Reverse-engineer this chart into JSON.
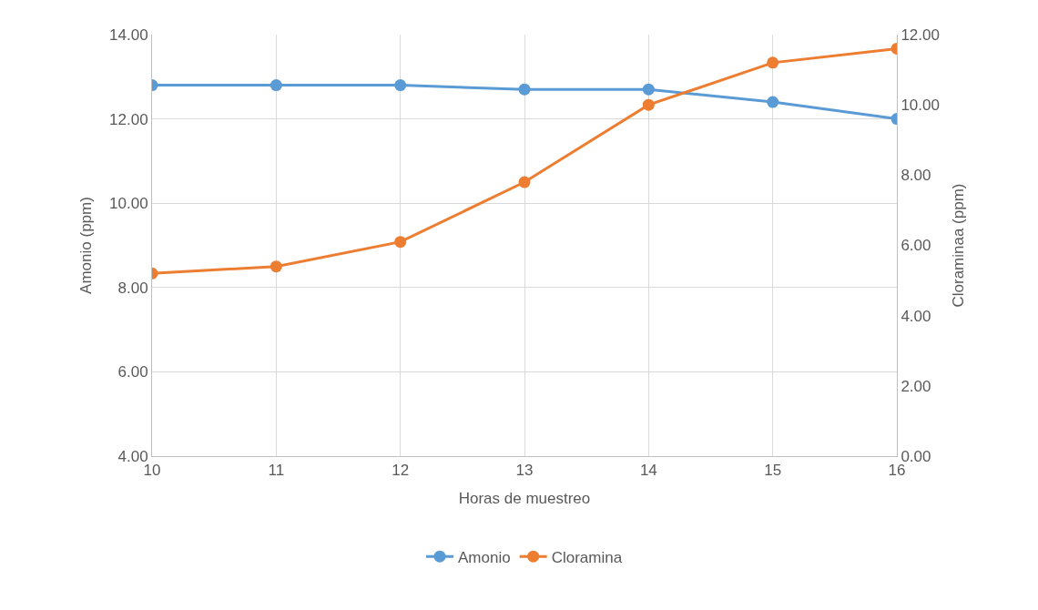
{
  "chart_data": {
    "type": "line",
    "xlabel": "Horas de muestreo",
    "ylabel": "Amonio (ppm)",
    "y2label": "Cloraminaa (ppm)",
    "x": [
      10,
      11,
      12,
      13,
      14,
      15,
      16
    ],
    "series": [
      {
        "name": "Amonio",
        "color": "#5b9bd5",
        "values": [
          12.8,
          12.8,
          12.8,
          12.7,
          12.7,
          12.4,
          12.0
        ]
      },
      {
        "name": "Cloramina",
        "color": "#ed7d31",
        "axis": "y2",
        "values": [
          5.2,
          5.4,
          6.1,
          7.8,
          10.0,
          11.2,
          11.6
        ]
      }
    ],
    "xlim": [
      10,
      16
    ],
    "xticks": [
      10,
      11,
      12,
      13,
      14,
      15,
      16
    ],
    "ylim": [
      4,
      14
    ],
    "yticks": [
      {
        "value": 4,
        "label": "4.00"
      },
      {
        "value": 6,
        "label": "6.00"
      },
      {
        "value": 8,
        "label": "8.00"
      },
      {
        "value": 10,
        "label": "10.00"
      },
      {
        "value": 12,
        "label": "12.00"
      },
      {
        "value": 14,
        "label": "14.00"
      }
    ],
    "y2lim": [
      0,
      12
    ],
    "y2ticks": [
      {
        "value": 0,
        "label": "0.00"
      },
      {
        "value": 2,
        "label": "2.00"
      },
      {
        "value": 4,
        "label": "4.00"
      },
      {
        "value": 6,
        "label": "6.00"
      },
      {
        "value": 8,
        "label": "8.00"
      },
      {
        "value": 10,
        "label": "10.00"
      },
      {
        "value": 12,
        "label": "12.00"
      }
    ],
    "grid": true,
    "legend": "bottom",
    "marker": "circle",
    "line_style": "solid"
  }
}
